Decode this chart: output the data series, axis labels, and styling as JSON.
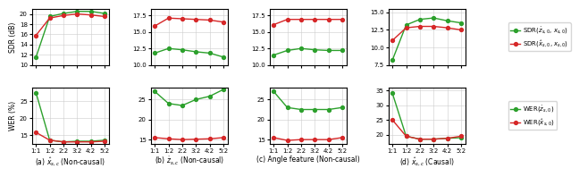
{
  "x_labels": [
    "1:1",
    "1:2",
    "2:2",
    "3:2",
    "4:2",
    "5:2"
  ],
  "x_vals": [
    0,
    1,
    2,
    3,
    4,
    5
  ],
  "panel_a": {
    "title": "(a) $\\hat{x}_{s,c}$ (Non-causal)",
    "sdr_green": [
      11.5,
      19.5,
      20.1,
      20.5,
      20.5,
      20.1
    ],
    "sdr_red": [
      15.8,
      19.2,
      19.7,
      20.0,
      19.8,
      19.5
    ],
    "wer_green": [
      27.5,
      13.5,
      13.0,
      13.2,
      13.2,
      13.5
    ],
    "wer_red": [
      15.8,
      13.5,
      13.0,
      13.0,
      13.0,
      13.2
    ],
    "sdr_ylim": [
      10,
      21
    ],
    "sdr_yticks": [
      10,
      12,
      14,
      16,
      18,
      20
    ],
    "wer_ylim": [
      12.5,
      29
    ],
    "wer_yticks": [
      15,
      20,
      25
    ]
  },
  "panel_b": {
    "title": "(b) $\\dot{z}_{s,c}$ (Non-causal)",
    "sdr_green": [
      11.8,
      12.5,
      12.3,
      12.0,
      11.8,
      11.2
    ],
    "sdr_red": [
      15.9,
      17.1,
      17.0,
      16.9,
      16.8,
      16.5
    ],
    "wer_green": [
      27.0,
      24.0,
      23.5,
      25.0,
      25.8,
      27.5
    ],
    "wer_red": [
      15.5,
      15.2,
      15.0,
      15.1,
      15.2,
      15.5
    ],
    "sdr_ylim": [
      10.0,
      18.5
    ],
    "sdr_yticks": [
      10.0,
      12.5,
      15.0,
      17.5
    ],
    "wer_ylim": [
      14.0,
      28.0
    ],
    "wer_yticks": [
      15,
      20,
      25
    ]
  },
  "panel_c": {
    "title": "(c) Angle feature (Non-causal)",
    "sdr_green": [
      11.5,
      12.2,
      12.5,
      12.3,
      12.2,
      12.2
    ],
    "sdr_red": [
      16.1,
      16.9,
      16.9,
      16.9,
      16.9,
      16.9
    ],
    "wer_green": [
      27.0,
      23.0,
      22.5,
      22.5,
      22.5,
      23.0
    ],
    "wer_red": [
      15.5,
      14.8,
      15.0,
      15.0,
      15.0,
      15.5
    ],
    "sdr_ylim": [
      10.0,
      18.5
    ],
    "sdr_yticks": [
      10.0,
      12.5,
      15.0,
      17.5
    ],
    "wer_ylim": [
      14.0,
      28.0
    ],
    "wer_yticks": [
      15,
      20,
      25
    ]
  },
  "panel_d": {
    "title": "(d) $\\hat{x}_{s,c}$ (Causal)",
    "sdr_green": [
      8.2,
      13.2,
      14.0,
      14.2,
      13.8,
      13.5
    ],
    "sdr_red": [
      11.0,
      12.8,
      13.0,
      13.0,
      12.8,
      12.5
    ],
    "wer_green": [
      34.0,
      19.5,
      18.5,
      18.5,
      18.8,
      19.0
    ],
    "wer_red": [
      25.0,
      19.5,
      18.5,
      18.5,
      18.8,
      19.5
    ],
    "sdr_ylim": [
      7.5,
      15.5
    ],
    "sdr_yticks": [
      7.5,
      10.0,
      12.5,
      15.0
    ],
    "wer_ylim": [
      17.0,
      36.0
    ],
    "wer_yticks": [
      20,
      25,
      30,
      35
    ]
  },
  "green_color": "#2ca02c",
  "red_color": "#d62728",
  "marker": "o",
  "linewidth": 1.0,
  "markersize": 2.8,
  "sdr_legend": [
    "SDR($\\dot{z}_{s,0}$, $x_{s,0}$)",
    "SDR($\\hat{x}_{s,0}$, $x_{s,0}$)"
  ],
  "wer_legend": [
    "WER($\\dot{z}_{s,0}$)",
    "WER($\\hat{x}_{s,0}$)"
  ]
}
